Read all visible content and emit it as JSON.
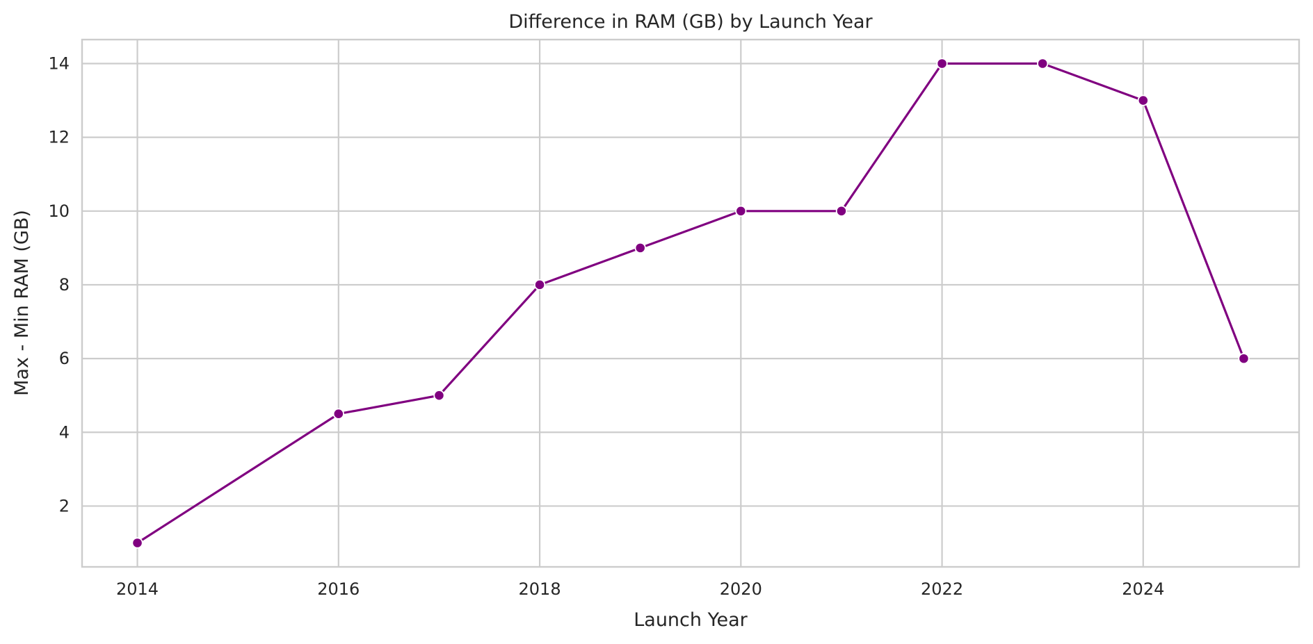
{
  "colors": {
    "line": "#800080",
    "marker": "#800080",
    "marker_edge": "#ffffff",
    "grid": "#cccccc",
    "background": "#ffffff"
  },
  "chart_data": {
    "type": "line",
    "title": "Difference in RAM (GB) by Launch Year",
    "xlabel": "Launch Year",
    "ylabel": "Max - Min RAM (GB)",
    "x": [
      2014,
      2016,
      2017,
      2018,
      2019,
      2020,
      2021,
      2022,
      2023,
      2024,
      2025
    ],
    "series": [
      {
        "values": [
          1,
          4.5,
          5,
          8,
          9,
          10,
          10,
          14,
          14,
          13,
          6
        ]
      }
    ],
    "xlim": [
      2013.45,
      2025.55
    ],
    "ylim": [
      0.35,
      14.65
    ],
    "xticks": [
      2014,
      2016,
      2018,
      2020,
      2022,
      2024
    ],
    "xtick_labels": [
      "2014",
      "2016",
      "2018",
      "2020",
      "2022",
      "2024"
    ],
    "yticks": [
      2,
      4,
      6,
      8,
      10,
      12,
      14
    ],
    "ytick_labels": [
      "2",
      "4",
      "6",
      "8",
      "10",
      "12",
      "14"
    ],
    "grid": true,
    "legend": "none",
    "marker": "circle"
  }
}
